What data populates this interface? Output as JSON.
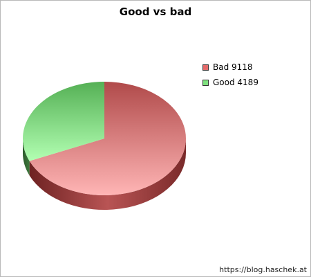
{
  "chart_data": {
    "type": "pie",
    "title": "Good vs bad",
    "series": [
      {
        "name": "Bad",
        "value": 9118,
        "color": "#e36a6a",
        "legend_label": "Bad 9118"
      },
      {
        "name": "Good",
        "value": 4189,
        "color": "#7ee07e",
        "legend_label": "Good 4189"
      }
    ],
    "style": "3d",
    "legend_position": "right"
  },
  "footer": {
    "text": "https://blog.haschek.at"
  }
}
